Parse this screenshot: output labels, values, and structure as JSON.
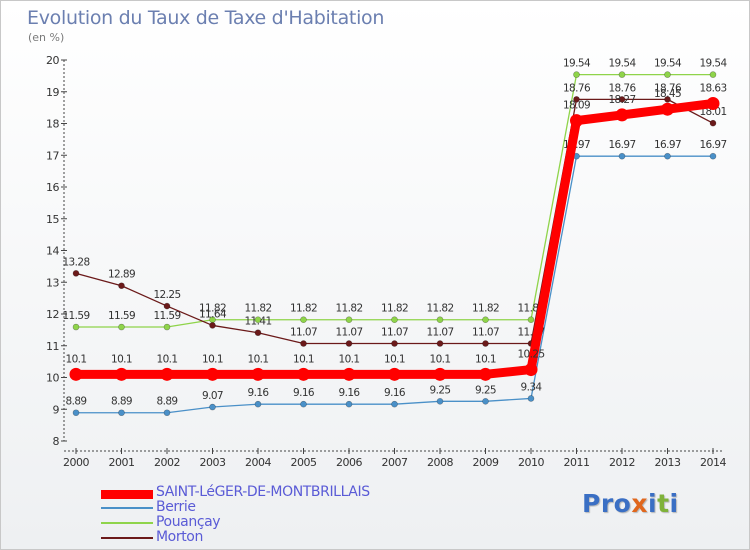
{
  "header": {
    "title": "Evolution du Taux de Taxe d'Habitation",
    "unit": "(en %)"
  },
  "logo": {
    "text": "Proxiti",
    "letters": [
      {
        "ch": "P",
        "color": "#3a6fc4"
      },
      {
        "ch": "r",
        "color": "#3a6fc4"
      },
      {
        "ch": "o",
        "color": "#3a6fc4"
      },
      {
        "ch": "x",
        "color": "#e0671d"
      },
      {
        "ch": "i",
        "color": "#3a6fc4"
      },
      {
        "ch": "t",
        "color": "#7fb23a"
      },
      {
        "ch": "i",
        "color": "#3a6fc4"
      }
    ]
  },
  "chart_data": {
    "type": "line",
    "title": "Evolution du Taux de Taxe d'Habitation",
    "ylabel": "(en %)",
    "xlabel": "",
    "x": [
      "2000",
      "2001",
      "2002",
      "2003",
      "2004",
      "2005",
      "2006",
      "2007",
      "2008",
      "2009",
      "2010",
      "2011",
      "2012",
      "2013",
      "2014"
    ],
    "ylim": [
      8,
      20
    ],
    "yticks": [
      8,
      9,
      10,
      11,
      12,
      13,
      14,
      15,
      16,
      17,
      18,
      19,
      20
    ],
    "grid": false,
    "legend_position": "bottom-left",
    "series": [
      {
        "name": "SAINT-LéGER-DE-MONTBRILLAIS",
        "color": "#ff0000",
        "labels_on_top": true,
        "values": [
          10.1,
          10.1,
          10.1,
          10.1,
          10.1,
          10.1,
          10.1,
          10.1,
          10.1,
          10.1,
          10.25,
          18.09,
          18.27,
          18.45,
          18.63
        ]
      },
      {
        "name": "Berrie",
        "color": "#4a90c8",
        "values": [
          8.89,
          8.89,
          8.89,
          9.07,
          9.16,
          9.16,
          9.16,
          9.16,
          9.25,
          9.25,
          9.34,
          16.97,
          16.97,
          16.97,
          16.97
        ]
      },
      {
        "name": "Pouançay",
        "color": "#8fd44a",
        "values": [
          11.59,
          11.59,
          11.59,
          11.82,
          11.82,
          11.82,
          11.82,
          11.82,
          11.82,
          11.82,
          11.82,
          19.54,
          19.54,
          19.54,
          19.54
        ]
      },
      {
        "name": "Morton",
        "color": "#6b1a1a",
        "values": [
          13.28,
          12.89,
          12.25,
          11.64,
          11.41,
          11.07,
          11.07,
          11.07,
          11.07,
          11.07,
          11.07,
          18.76,
          18.76,
          18.76,
          18.01
        ]
      }
    ]
  }
}
